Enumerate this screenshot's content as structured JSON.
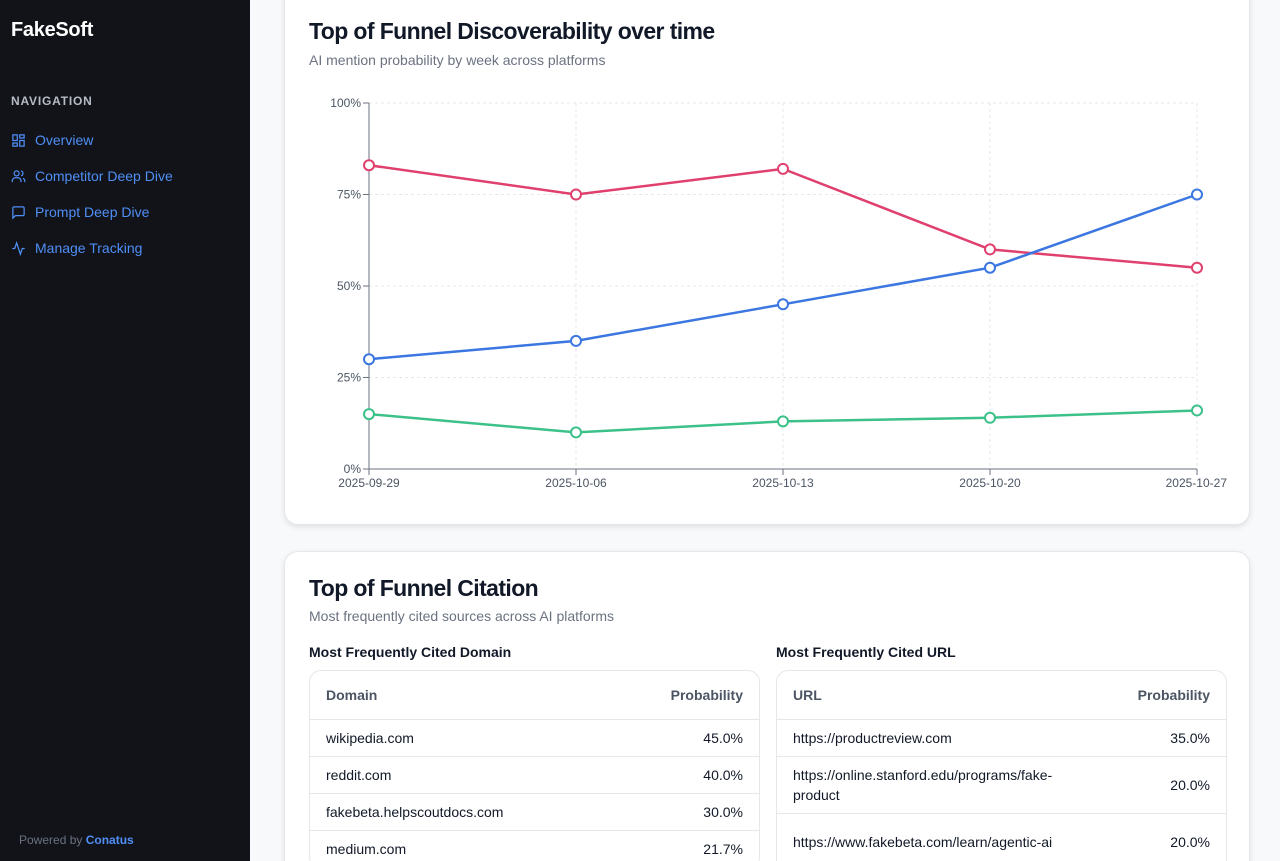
{
  "sidebar": {
    "brand": "FakeSoft",
    "nav_heading": "NAVIGATION",
    "items": [
      {
        "label": "Overview",
        "icon": "dashboard-icon"
      },
      {
        "label": "Competitor Deep Dive",
        "icon": "users-icon"
      },
      {
        "label": "Prompt Deep Dive",
        "icon": "message-icon"
      },
      {
        "label": "Manage Tracking",
        "icon": "activity-icon"
      }
    ],
    "powered_prefix": "Powered by",
    "powered_brand": "Conatus"
  },
  "discover": {
    "title": "Top of Funnel Discoverability over time",
    "subtitle": "AI mention probability by week across platforms"
  },
  "chart_data": {
    "type": "line",
    "x": [
      "2025-09-29",
      "2025-10-06",
      "2025-10-13",
      "2025-10-20",
      "2025-10-27"
    ],
    "yticks": [
      "0%",
      "25%",
      "50%",
      "75%",
      "100%"
    ],
    "ylim": [
      0,
      100
    ],
    "grid": true,
    "series": [
      {
        "color": "#e0406e",
        "values": [
          83,
          75,
          82,
          60,
          55
        ]
      },
      {
        "color": "#3b76e1",
        "values": [
          30,
          35,
          45,
          55,
          75
        ]
      },
      {
        "color": "#3cc18a",
        "values": [
          15,
          10,
          13,
          14,
          16
        ]
      }
    ]
  },
  "citation": {
    "title": "Top of Funnel Citation",
    "subtitle": "Most frequently cited sources across AI platforms",
    "domain_table": {
      "heading": "Most Frequently Cited Domain",
      "col1": "Domain",
      "col2": "Probability",
      "rows": [
        {
          "name": "wikipedia.com",
          "value": "45.0%"
        },
        {
          "name": "reddit.com",
          "value": "40.0%"
        },
        {
          "name": "fakebeta.helpscoutdocs.com",
          "value": "30.0%"
        },
        {
          "name": "medium.com",
          "value": "21.7%"
        }
      ]
    },
    "url_table": {
      "heading": "Most Frequently Cited URL",
      "col1": "URL",
      "col2": "Probability",
      "rows": [
        {
          "name": "https://productreview.com",
          "value": "35.0%"
        },
        {
          "name": "https://online.stanford.edu/programs/fake-product",
          "value": "20.0%"
        },
        {
          "name": "https://www.fakebeta.com/learn/agentic-ai",
          "value": "20.0%"
        }
      ]
    }
  }
}
